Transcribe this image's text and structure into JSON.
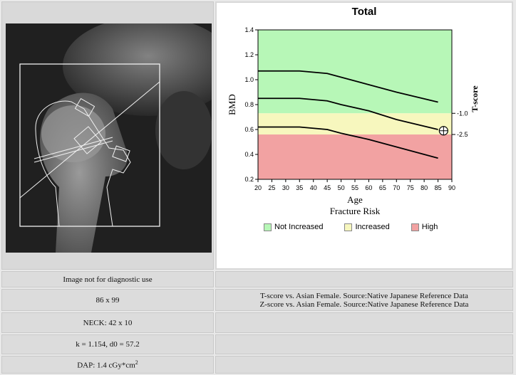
{
  "image_panel": {
    "caption": "Image not for diagnostic use",
    "size": "86 x 99",
    "neck": "NECK: 42 x 10",
    "calibration": "k = 1.154, d0 = 57.2",
    "dap_prefix": "DAP: 1.4 cGy*cm",
    "dap_exp": "2"
  },
  "reference": {
    "line1": "T-score vs. Asian Female. Source:Native Japanese Reference Data",
    "line2": "Z-score vs. Asian Female. Source:Native Japanese Reference Data"
  },
  "colors": {
    "not_increased": "#b7f7b7",
    "increased": "#f7f7be",
    "high": "#f2a2a2"
  },
  "chart_data": {
    "type": "line",
    "title": "Total",
    "xlabel": "Age",
    "ylabel": "BMD",
    "y2label": "T-score",
    "subtitle": "Fracture Risk",
    "xlim": [
      20,
      90
    ],
    "ylim": [
      0.2,
      1.4
    ],
    "xticks": [
      "20",
      "25",
      "30",
      "35",
      "40",
      "45",
      "50",
      "55",
      "60",
      "65",
      "70",
      "75",
      "80",
      "85",
      "90"
    ],
    "yticks": [
      "0.2",
      "0.4",
      "0.6",
      "0.8",
      "1.0",
      "1.2",
      "1.4"
    ],
    "t_ticks": [
      {
        "label": "-1.0",
        "bmd": 0.73
      },
      {
        "label": "-2.5",
        "bmd": 0.56
      }
    ],
    "zones": [
      {
        "name": "Not Increased",
        "from": 0.73,
        "to": 1.4
      },
      {
        "name": "Increased",
        "from": 0.56,
        "to": 0.73
      },
      {
        "name": "High",
        "from": 0.2,
        "to": 0.56
      }
    ],
    "series": [
      {
        "x": [
          20,
          35,
          45,
          50,
          60,
          70,
          85
        ],
        "values": [
          1.07,
          1.07,
          1.05,
          1.02,
          0.96,
          0.9,
          0.82
        ]
      },
      {
        "x": [
          20,
          35,
          45,
          50,
          60,
          70,
          85
        ],
        "values": [
          0.85,
          0.85,
          0.83,
          0.8,
          0.75,
          0.68,
          0.6
        ]
      },
      {
        "x": [
          20,
          35,
          45,
          50,
          60,
          70,
          85
        ],
        "values": [
          0.62,
          0.62,
          0.6,
          0.57,
          0.52,
          0.46,
          0.37
        ]
      }
    ],
    "patient": {
      "x": 87,
      "y": 0.59
    },
    "legend": [
      "Not Increased",
      "Increased",
      "High"
    ]
  }
}
